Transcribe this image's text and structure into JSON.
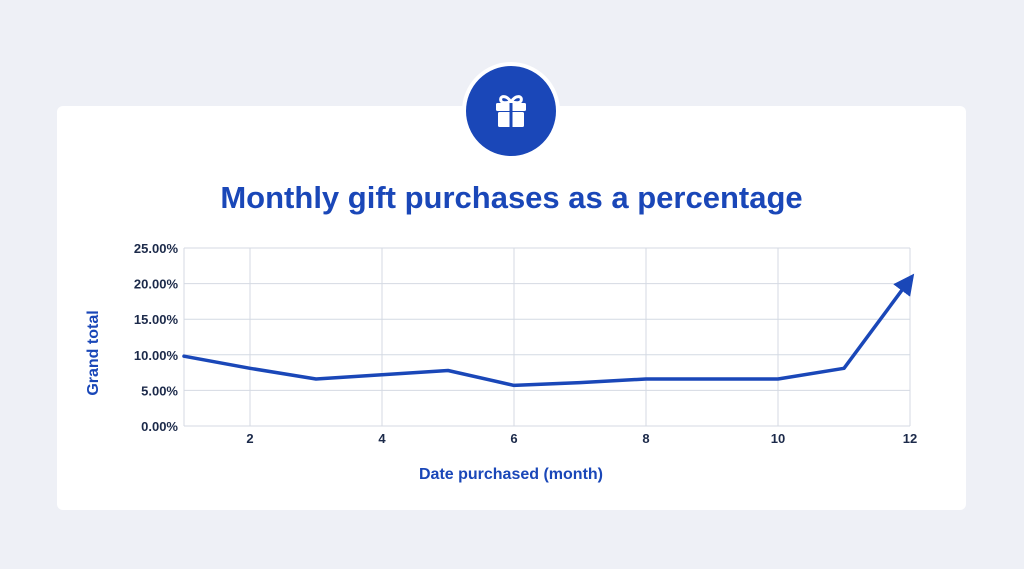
{
  "icon": "gift-icon",
  "colors": {
    "accent": "#1a47b8",
    "background": "#eef0f6",
    "card": "#ffffff",
    "grid": "#d4dae3"
  },
  "chart_data": {
    "type": "line",
    "title": "Monthly gift purchases as a percentage",
    "xlabel": "Date purchased (month)",
    "ylabel": "Grand total",
    "xlim": [
      1,
      12
    ],
    "ylim": [
      0,
      25
    ],
    "x_ticks": [
      2,
      4,
      6,
      8,
      10,
      12
    ],
    "y_ticks": [
      "0.00%",
      "5.00%",
      "10.00%",
      "15.00%",
      "20.00%",
      "25.00%"
    ],
    "grid": true,
    "series": [
      {
        "x": [
          1,
          2,
          3,
          4,
          5,
          6,
          7,
          8,
          9,
          10,
          11,
          12
        ],
        "values": [
          9.8,
          8.1,
          6.6,
          7.2,
          7.8,
          5.7,
          6.1,
          6.6,
          6.6,
          6.6,
          8.1,
          20.6
        ]
      }
    ]
  }
}
